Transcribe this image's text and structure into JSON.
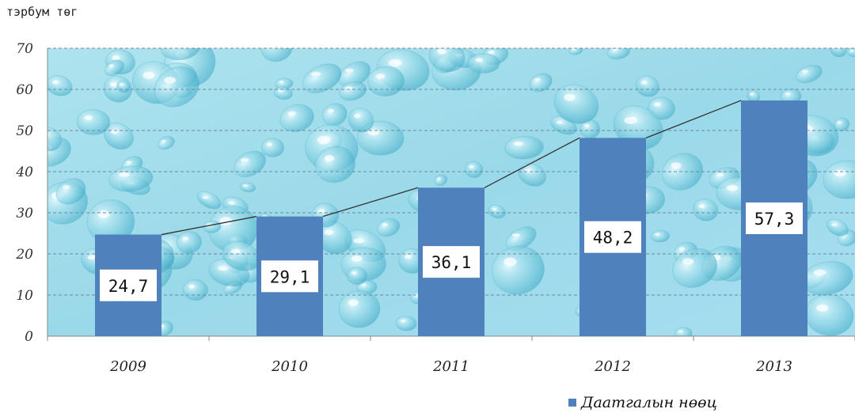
{
  "chart_data": {
    "type": "bar",
    "unit_label": "тэрбум төг",
    "categories": [
      "2009",
      "2010",
      "2011",
      "2012",
      "2013"
    ],
    "series": [
      {
        "name": "Даатгалын нөөц",
        "values": [
          24.7,
          29.1,
          36.1,
          48.2,
          57.3
        ]
      }
    ],
    "data_labels": [
      "24,7",
      "29,1",
      "36,1",
      "48,2",
      "57,3"
    ],
    "trend_line": true,
    "ylim": [
      0,
      70
    ],
    "yticks": [
      "0",
      "10",
      "20",
      "30",
      "40",
      "50",
      "60",
      "70"
    ],
    "grid": true,
    "legend_position": "bottom-right",
    "bar_color": "#4f81bd",
    "background": "water-droplets-cyan"
  }
}
